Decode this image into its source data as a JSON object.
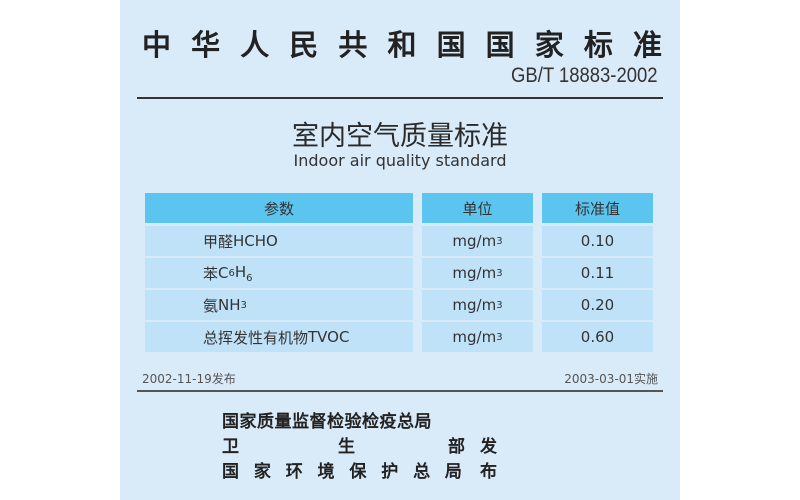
{
  "header": {
    "title": [
      "中",
      "华",
      "人",
      "民",
      "共",
      "和",
      "国",
      "国",
      "家",
      "标",
      "准"
    ],
    "code": "GB/T 18883-2002"
  },
  "subtitle": {
    "cn": "室内空气质量标准",
    "en": "Indoor air quality standard"
  },
  "table": {
    "columns": [
      "参数",
      "单位",
      "标准值"
    ],
    "rows": [
      {
        "param": "甲醛",
        "formula": "HCHO",
        "formula_sub": "",
        "formula_tail": "",
        "unit": "mg/m",
        "unit_sup": "3",
        "value": "0.10"
      },
      {
        "param": "苯",
        "formula": "C",
        "formula_sub": "6",
        "formula_tail": "H6",
        "unit": "mg/m",
        "unit_sup": "3",
        "value": "0.11"
      },
      {
        "param": "氨",
        "formula": "NH",
        "formula_sub": "3",
        "formula_tail": "",
        "unit": "mg/m",
        "unit_sup": "3",
        "value": "0.20"
      },
      {
        "param": "总挥发性有机物",
        "formula": "TVOC",
        "formula_sub": "",
        "formula_tail": "",
        "unit": "mg/m",
        "unit_sup": "3",
        "value": "0.60"
      }
    ]
  },
  "dates": {
    "issued": "2002-11-19发布",
    "effective": "2003-03-01实施"
  },
  "publishers": {
    "line1": "国家质量监督检验检疫总局",
    "line2": [
      "卫",
      "生",
      "部",
      "发布"
    ],
    "line3": [
      "国",
      "家",
      "环",
      "境",
      "保",
      "护",
      "总",
      "局"
    ]
  },
  "colors": {
    "page_bg": "#d9eaf8",
    "header_bg": "#5cc5ef",
    "row_bg": "#c0e2f8"
  }
}
